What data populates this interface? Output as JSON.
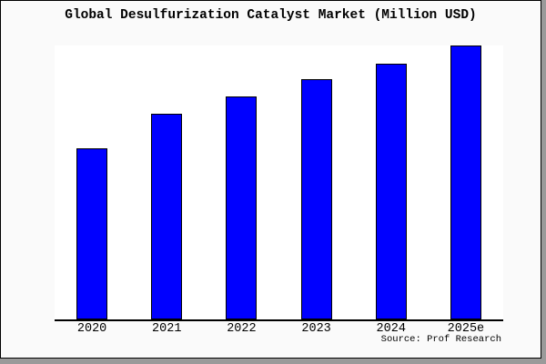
{
  "frame": {
    "background_color": "#fafafa",
    "plot_background_color": "#ffffff",
    "border_color": "#000000",
    "shadow_color": "#9a9a9a"
  },
  "chart_data": {
    "type": "bar",
    "title": "Global Desulfurization Catalyst Market (Million USD)",
    "categories": [
      "2020",
      "2021",
      "2022",
      "2023",
      "2024",
      "2025e"
    ],
    "values": [
      62.6,
      75.1,
      81.3,
      87.6,
      93.5,
      100
    ],
    "values_note": "relative bar heights as % of tallest (2025e) bar; no numeric y-axis labels are shown in the image",
    "xlabel": "",
    "ylabel": "",
    "ylim": [
      0,
      100
    ],
    "y_axis_ticks_shown": false,
    "gridlines": false,
    "legend": false,
    "bar_color": "#0000ff",
    "bar_border_color": "#000000",
    "axis_line_color": "#000000",
    "source_note": "Source: Prof Research"
  }
}
